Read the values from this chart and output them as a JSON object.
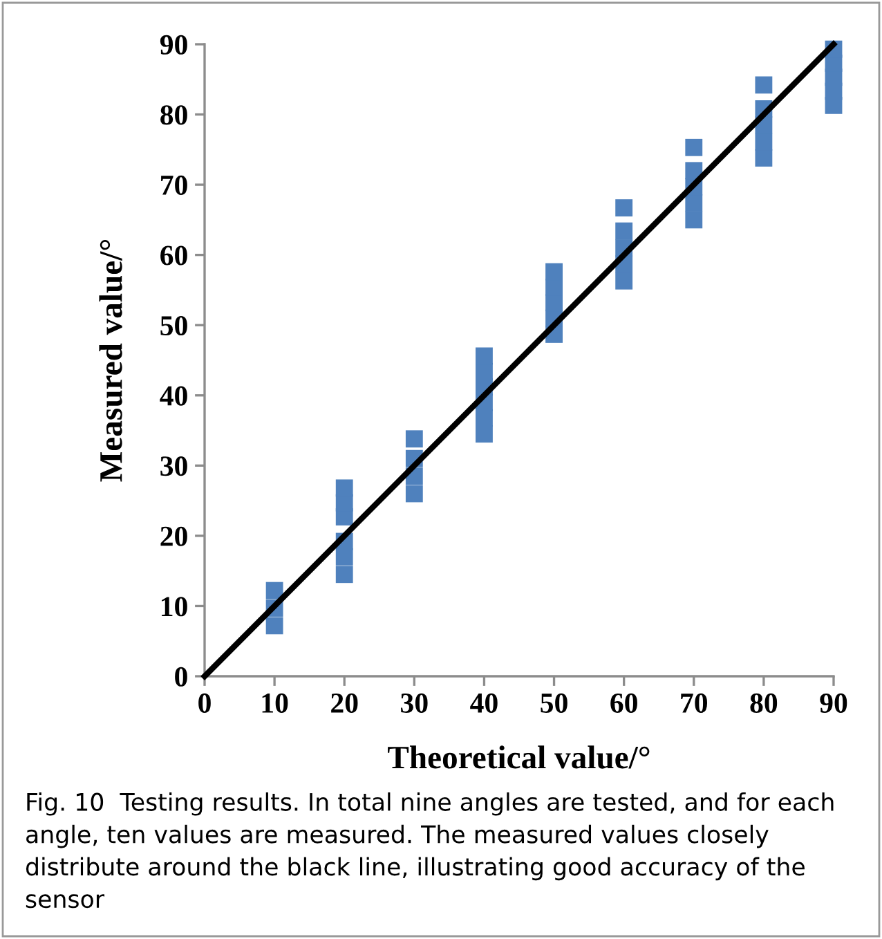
{
  "chart_data": {
    "type": "scatter",
    "xlabel": "Theoretical value/°",
    "ylabel": "Measured value/°",
    "xlim": [
      0,
      90
    ],
    "ylim": [
      0,
      90
    ],
    "xticks": [
      0,
      10,
      20,
      30,
      40,
      50,
      60,
      70,
      80,
      90
    ],
    "yticks": [
      0,
      10,
      20,
      30,
      40,
      50,
      60,
      70,
      80,
      90
    ],
    "grid": false,
    "legend": false,
    "marker": "square",
    "series": [
      {
        "type": "line",
        "color": "#000000",
        "line_style": "solid",
        "marker": "none",
        "x": [
          0,
          90
        ],
        "values": [
          0,
          90
        ]
      },
      {
        "color": "#4f81bd",
        "x": [
          10,
          10,
          10,
          20,
          20,
          20,
          20,
          20,
          20,
          30,
          30,
          30,
          30,
          40,
          40,
          40,
          40,
          40,
          40,
          50,
          50,
          50,
          50,
          50,
          60,
          60,
          60,
          60,
          60,
          70,
          70,
          70,
          70,
          70,
          80,
          80,
          80,
          80,
          80,
          90,
          90,
          90,
          90,
          90
        ],
        "values": [
          7.2,
          9.7,
          12.2,
          14.5,
          17,
          19.2,
          22.7,
          24.7,
          26.8,
          26,
          28.5,
          31,
          33.8,
          34.5,
          36.8,
          39,
          41.2,
          43.4,
          45.6,
          48.7,
          51,
          53.2,
          55.4,
          57.6,
          56.3,
          58.7,
          61,
          63.4,
          66.7,
          65,
          67.4,
          69.7,
          72,
          75.3,
          73.8,
          76.1,
          78.5,
          80.8,
          84.2,
          81.3,
          83.3,
          85.3,
          87.3,
          89.3
        ]
      }
    ],
    "annotations": [
      "Fig. 10  Testing results. In total nine angles are tested, and for each angle, ten values are measured. The measured values closely distribute around the black line, illustrating good accuracy of the sensor"
    ]
  }
}
